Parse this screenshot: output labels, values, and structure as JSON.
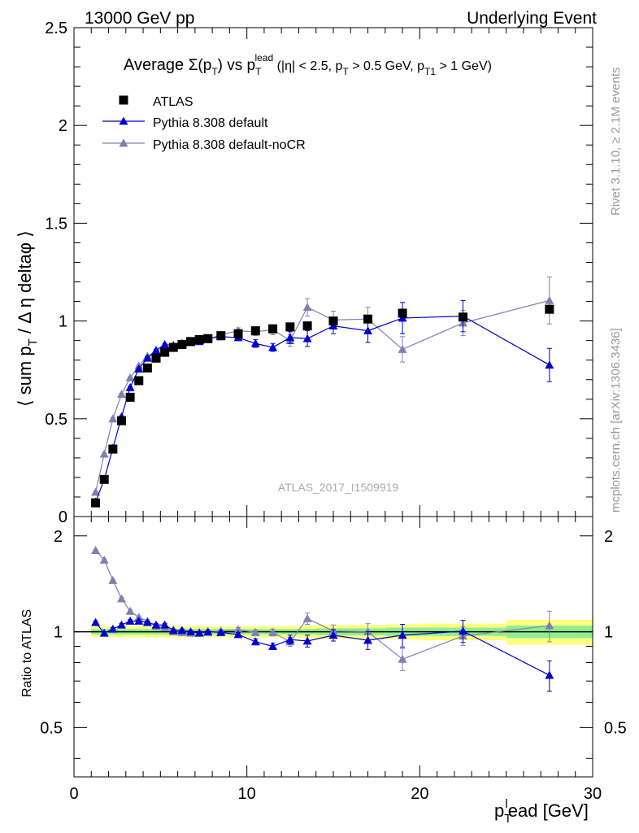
{
  "header": {
    "left": "13000 GeV pp",
    "right": "Underlying Event"
  },
  "side_labels": {
    "rivet": "Rivet 3.1.10, ≥ 2.1M events",
    "mcplots": "mcplots.cern.ch [arXiv:1306.3436]"
  },
  "chart_data": [
    {
      "type": "scatter",
      "panel": "main",
      "title": "Average Σ(pT) vs pT lead (|η| < 2.5, pT > 0.5 GeV, pT1 > 1 GeV)",
      "ylabel": "⟨ sum pT / Δη deltaφ ⟩",
      "xlim": [
        0,
        30
      ],
      "ylim": [
        0,
        2.5
      ],
      "x_ticks": [
        0,
        10,
        20,
        30
      ],
      "y_ticks": [
        "0",
        "0.5",
        "1",
        "1.5",
        "2",
        "2.5"
      ],
      "watermark": "ATLAS_2017_I1509919",
      "legend": [
        "ATLAS",
        "Pythia 8.308 default",
        "Pythia 8.308 default-noCR"
      ],
      "legend_position": "top-left",
      "series": [
        {
          "name": "ATLAS",
          "marker": "square",
          "color": "#000000",
          "x": [
            1.25,
            1.75,
            2.25,
            2.75,
            3.25,
            3.75,
            4.25,
            4.75,
            5.25,
            5.75,
            6.25,
            6.75,
            7.25,
            7.75,
            8.5,
            9.5,
            10.5,
            11.5,
            12.5,
            13.5,
            15,
            17,
            19,
            22.5,
            27.5
          ],
          "y": [
            0.07,
            0.19,
            0.345,
            0.49,
            0.61,
            0.695,
            0.76,
            0.81,
            0.84,
            0.865,
            0.88,
            0.895,
            0.905,
            0.91,
            0.925,
            0.935,
            0.95,
            0.96,
            0.97,
            0.975,
            1.0,
            1.01,
            1.04,
            1.02,
            1.06
          ],
          "err": [
            0,
            0,
            0,
            0,
            0,
            0,
            0,
            0,
            0,
            0,
            0,
            0,
            0,
            0,
            0,
            0,
            0,
            0,
            0,
            0,
            0,
            0,
            0,
            0,
            0
          ]
        },
        {
          "name": "Pythia 8.308 default",
          "marker": "triangle",
          "color": "#0000cc",
          "x": [
            1.25,
            1.75,
            2.25,
            2.75,
            3.25,
            3.75,
            4.25,
            4.75,
            5.25,
            5.75,
            6.25,
            6.75,
            7.25,
            7.75,
            8.5,
            9.5,
            10.5,
            11.5,
            12.5,
            13.5,
            15,
            17,
            19,
            22.5,
            27.5
          ],
          "y": [
            0.075,
            0.19,
            0.35,
            0.51,
            0.66,
            0.755,
            0.81,
            0.85,
            0.88,
            0.875,
            0.885,
            0.895,
            0.895,
            0.91,
            0.92,
            0.915,
            0.885,
            0.865,
            0.915,
            0.91,
            0.975,
            0.95,
            1.015,
            1.025,
            0.775
          ],
          "err": [
            0.005,
            0.005,
            0.005,
            0.005,
            0.005,
            0.005,
            0.005,
            0.005,
            0.005,
            0.005,
            0.005,
            0.005,
            0.005,
            0.005,
            0.01,
            0.015,
            0.02,
            0.02,
            0.03,
            0.04,
            0.04,
            0.06,
            0.08,
            0.08,
            0.085
          ]
        },
        {
          "name": "Pythia 8.308 default-noCR",
          "marker": "triangle",
          "color": "#7f7fb2",
          "x": [
            1.25,
            1.75,
            2.25,
            2.75,
            3.25,
            3.75,
            4.25,
            4.75,
            5.25,
            5.75,
            6.25,
            6.75,
            7.25,
            7.75,
            8.5,
            9.5,
            10.5,
            11.5,
            12.5,
            13.5,
            15,
            17,
            19,
            22.5,
            27.5
          ],
          "y": [
            0.125,
            0.32,
            0.5,
            0.625,
            0.71,
            0.77,
            0.82,
            0.845,
            0.865,
            0.87,
            0.875,
            0.89,
            0.9,
            0.905,
            0.93,
            0.95,
            0.945,
            0.955,
            0.9,
            1.07,
            1.005,
            1.01,
            0.855,
            0.99,
            1.105
          ],
          "err": [
            0.005,
            0.005,
            0.005,
            0.005,
            0.005,
            0.005,
            0.005,
            0.005,
            0.005,
            0.005,
            0.005,
            0.005,
            0.005,
            0.005,
            0.01,
            0.015,
            0.02,
            0.025,
            0.03,
            0.045,
            0.045,
            0.06,
            0.065,
            0.065,
            0.12
          ]
        }
      ]
    },
    {
      "type": "scatter",
      "panel": "ratio",
      "ylabel": "Ratio to ATLAS",
      "xlabel": "pT lead [GeV]",
      "xlim": [
        0,
        30
      ],
      "ylim": [
        0.35,
        2.3
      ],
      "x_ticks": [
        "0",
        "10",
        "20",
        "30"
      ],
      "y_ticks": [
        "0.5",
        "1",
        "2"
      ],
      "band_edges": [
        1,
        1.5,
        2,
        2.5,
        3,
        3.5,
        4,
        4.5,
        5,
        5.5,
        6,
        6.5,
        7,
        7.5,
        8,
        9,
        10,
        11,
        12,
        13,
        14,
        16,
        18,
        20,
        25,
        30
      ],
      "band_inner": [
        0.02,
        0.02,
        0.02,
        0.02,
        0.02,
        0.02,
        0.02,
        0.02,
        0.02,
        0.02,
        0.02,
        0.02,
        0.02,
        0.02,
        0.02,
        0.02,
        0.02,
        0.02,
        0.02,
        0.02,
        0.025,
        0.025,
        0.03,
        0.03,
        0.045
      ],
      "band_outer": [
        0.04,
        0.04,
        0.04,
        0.04,
        0.04,
        0.04,
        0.04,
        0.04,
        0.04,
        0.04,
        0.04,
        0.04,
        0.04,
        0.04,
        0.04,
        0.04,
        0.04,
        0.04,
        0.04,
        0.045,
        0.05,
        0.05,
        0.055,
        0.06,
        0.09
      ],
      "series": [
        {
          "name": "Pythia 8.308 default",
          "color": "#0000cc",
          "x": [
            1.25,
            1.75,
            2.25,
            2.75,
            3.25,
            3.75,
            4.25,
            4.75,
            5.25,
            5.75,
            6.25,
            6.75,
            7.25,
            7.75,
            8.5,
            9.5,
            10.5,
            11.5,
            12.5,
            13.5,
            15,
            17,
            19,
            22.5,
            27.5
          ],
          "y": [
            1.07,
            0.99,
            1.02,
            1.05,
            1.08,
            1.08,
            1.07,
            1.05,
            1.05,
            1.01,
            1.01,
            1.0,
            0.99,
            1.0,
            0.995,
            0.98,
            0.93,
            0.9,
            0.945,
            0.935,
            0.975,
            0.94,
            0.975,
            1.005,
            0.73
          ],
          "err": [
            0.01,
            0.01,
            0.01,
            0.01,
            0.01,
            0.01,
            0.01,
            0.01,
            0.01,
            0.01,
            0.01,
            0.01,
            0.01,
            0.01,
            0.01,
            0.015,
            0.02,
            0.02,
            0.03,
            0.04,
            0.04,
            0.06,
            0.08,
            0.08,
            0.08
          ]
        },
        {
          "name": "Pythia 8.308 default-noCR",
          "color": "#7f7fb2",
          "x": [
            1.25,
            1.75,
            2.25,
            2.75,
            3.25,
            3.75,
            4.25,
            4.75,
            5.25,
            5.75,
            6.25,
            6.75,
            7.25,
            7.75,
            8.5,
            9.5,
            10.5,
            11.5,
            12.5,
            13.5,
            15,
            17,
            19,
            22.5,
            27.5
          ],
          "y": [
            1.8,
            1.68,
            1.45,
            1.27,
            1.16,
            1.11,
            1.08,
            1.04,
            1.03,
            1.0,
            0.995,
            0.99,
            0.995,
            0.995,
            1.005,
            1.015,
            0.995,
            0.995,
            0.93,
            1.1,
            1.005,
            1.0,
            0.82,
            0.97,
            1.045
          ],
          "err": [
            0.01,
            0.01,
            0.01,
            0.01,
            0.01,
            0.01,
            0.01,
            0.01,
            0.01,
            0.01,
            0.01,
            0.01,
            0.01,
            0.01,
            0.01,
            0.015,
            0.02,
            0.025,
            0.03,
            0.045,
            0.045,
            0.06,
            0.065,
            0.065,
            0.115
          ]
        }
      ]
    }
  ]
}
